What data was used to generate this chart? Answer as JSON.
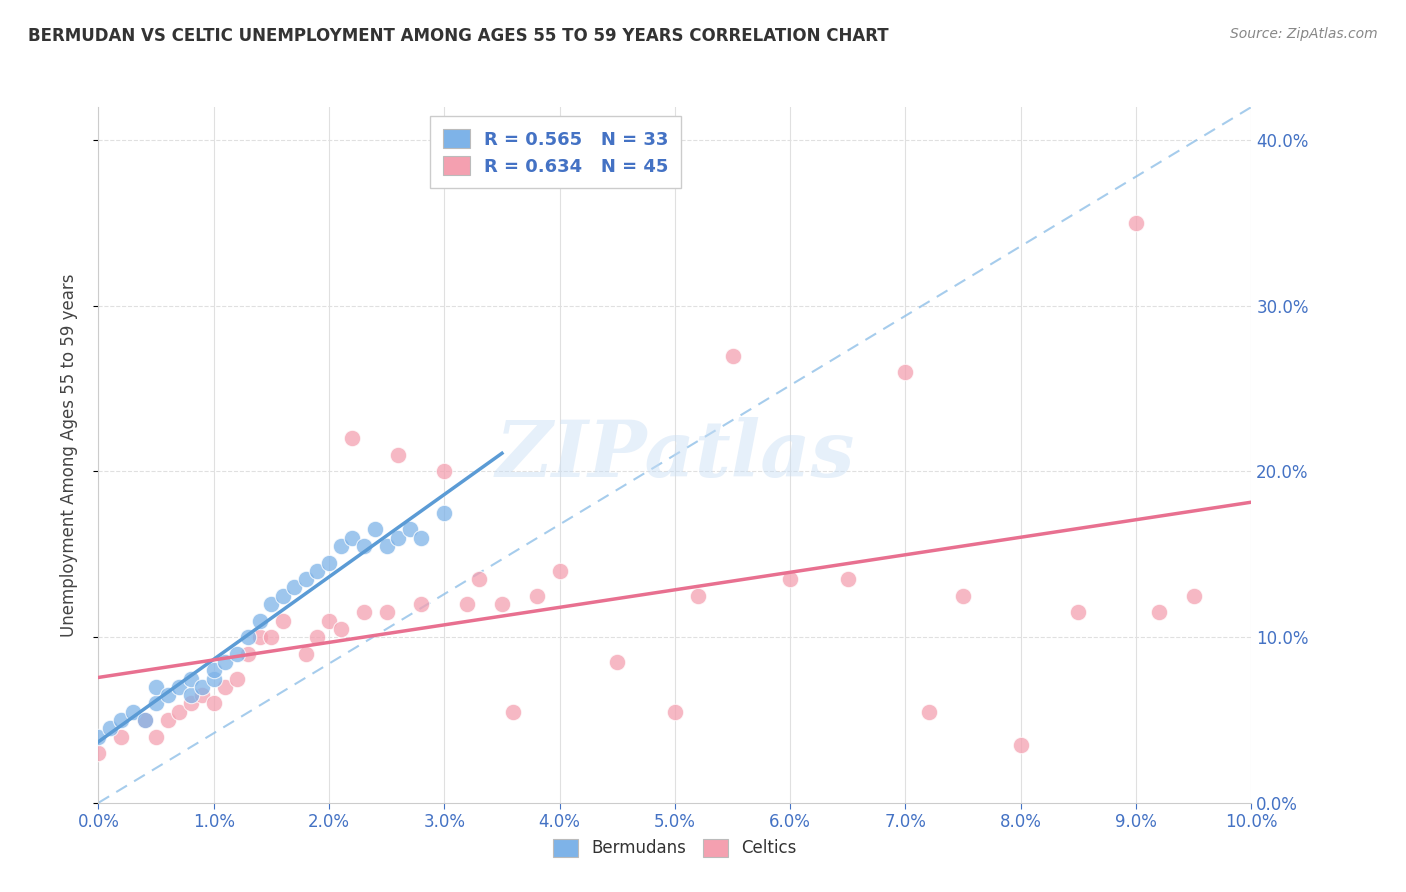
{
  "title": "BERMUDAN VS CELTIC UNEMPLOYMENT AMONG AGES 55 TO 59 YEARS CORRELATION CHART",
  "source": "Source: ZipAtlas.com",
  "ylabel_label": "Unemployment Among Ages 55 to 59 years",
  "xlim": [
    0,
    0.1
  ],
  "ylim": [
    0,
    0.42
  ],
  "watermark": "ZIPatlas",
  "legend_R_bermudan": "0.565",
  "legend_N_bermudan": "33",
  "legend_R_celtic": "0.634",
  "legend_N_celtic": "45",
  "color_bermudan": "#7EB3E8",
  "color_celtic": "#F4A0B0",
  "color_regression_bermudan": "#5B9BD5",
  "color_regression_celtic": "#E87090",
  "color_diagonal": "#90C0E8",
  "color_text_blue": "#4472C4",
  "bermudan_x": [
    0.0,
    0.001,
    0.002,
    0.003,
    0.004,
    0.005,
    0.005,
    0.006,
    0.007,
    0.008,
    0.008,
    0.009,
    0.01,
    0.01,
    0.011,
    0.012,
    0.013,
    0.014,
    0.015,
    0.016,
    0.017,
    0.018,
    0.019,
    0.02,
    0.021,
    0.022,
    0.023,
    0.024,
    0.025,
    0.026,
    0.027,
    0.028,
    0.03
  ],
  "bermudan_y": [
    0.04,
    0.045,
    0.05,
    0.055,
    0.05,
    0.06,
    0.07,
    0.065,
    0.07,
    0.065,
    0.075,
    0.07,
    0.075,
    0.08,
    0.085,
    0.09,
    0.1,
    0.11,
    0.12,
    0.125,
    0.13,
    0.135,
    0.14,
    0.145,
    0.155,
    0.16,
    0.155,
    0.165,
    0.155,
    0.16,
    0.165,
    0.16,
    0.175
  ],
  "celtic_x": [
    0.0,
    0.002,
    0.004,
    0.005,
    0.006,
    0.007,
    0.008,
    0.009,
    0.01,
    0.011,
    0.012,
    0.013,
    0.014,
    0.015,
    0.016,
    0.018,
    0.019,
    0.02,
    0.021,
    0.022,
    0.023,
    0.025,
    0.026,
    0.028,
    0.03,
    0.032,
    0.033,
    0.035,
    0.036,
    0.038,
    0.04,
    0.045,
    0.05,
    0.052,
    0.055,
    0.06,
    0.065,
    0.07,
    0.072,
    0.075,
    0.08,
    0.085,
    0.09,
    0.092,
    0.095
  ],
  "celtic_y": [
    0.03,
    0.04,
    0.05,
    0.04,
    0.05,
    0.055,
    0.06,
    0.065,
    0.06,
    0.07,
    0.075,
    0.09,
    0.1,
    0.1,
    0.11,
    0.09,
    0.1,
    0.11,
    0.105,
    0.22,
    0.115,
    0.115,
    0.21,
    0.12,
    0.2,
    0.12,
    0.135,
    0.12,
    0.055,
    0.125,
    0.14,
    0.085,
    0.055,
    0.125,
    0.27,
    0.135,
    0.135,
    0.26,
    0.055,
    0.125,
    0.035,
    0.115,
    0.35,
    0.115,
    0.125
  ],
  "grid_color": "#E0E0E0"
}
